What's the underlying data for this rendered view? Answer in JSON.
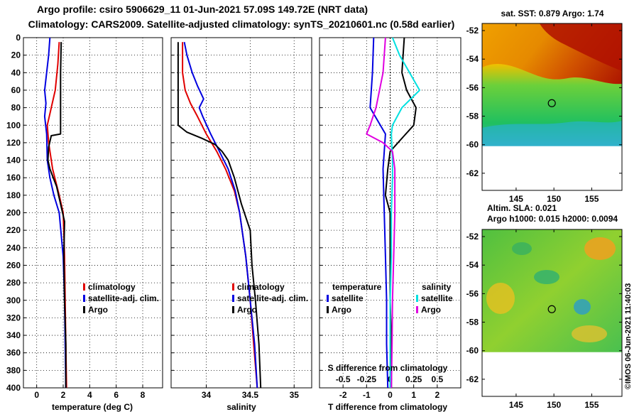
{
  "header": {
    "line1": "Argo profile: csiro 5906629_11 01-Jun-2021 57.09S 149.72E (NRT data)",
    "line2": "Climatology: CARS2009. Satellite-adjusted climatology: synTS_20210601.nc (0.58d earlier)"
  },
  "colors": {
    "climatology": "#e00000",
    "satellite": "#0000e0",
    "argo": "#000000",
    "sal_satellite": "#00e0e0",
    "sal_argo": "#e000e0"
  },
  "chart_data": [
    {
      "type": "line",
      "name": "temperature-profile",
      "xlabel": "temperature (deg C)",
      "ylabel": "",
      "xlim": [
        -1,
        9.5
      ],
      "ylim": [
        400,
        0
      ],
      "xticks": [
        0,
        2,
        4,
        6,
        8
      ],
      "xtick_labels": [
        "0",
        "2",
        "4",
        "6",
        "8"
      ],
      "yticks": [
        0,
        20,
        40,
        60,
        80,
        100,
        120,
        140,
        160,
        180,
        200,
        220,
        240,
        260,
        280,
        300,
        320,
        340,
        360,
        380,
        400
      ],
      "legend": [
        "climatology",
        "satellite-adj. clim.",
        "Argo"
      ],
      "series": [
        {
          "name": "climatology",
          "color": "climatology",
          "depth": [
            5,
            30,
            60,
            80,
            100,
            120,
            150,
            180,
            200,
            250,
            300,
            350,
            400
          ],
          "values": [
            1.7,
            1.6,
            1.4,
            1.1,
            0.8,
            0.9,
            1.2,
            1.7,
            2.0,
            2.1,
            2.15,
            2.2,
            2.25
          ]
        },
        {
          "name": "satellite-adj. clim.",
          "color": "satellite",
          "depth": [
            0,
            20,
            40,
            60,
            75,
            90,
            110,
            140,
            160,
            180,
            200,
            250,
            300,
            350,
            400
          ],
          "values": [
            1.0,
            0.9,
            0.75,
            0.6,
            0.7,
            0.6,
            0.75,
            0.8,
            1.0,
            1.3,
            1.7,
            2.0,
            2.1,
            2.15,
            2.2
          ]
        },
        {
          "name": "Argo",
          "color": "argo",
          "depth": [
            5,
            40,
            80,
            110,
            112,
            125,
            140,
            150,
            170,
            190,
            210,
            250,
            300,
            350,
            400
          ],
          "values": [
            1.85,
            1.8,
            1.8,
            1.8,
            1.1,
            0.9,
            0.85,
            1.0,
            1.5,
            1.8,
            2.1,
            2.05,
            2.1,
            2.2,
            2.2
          ]
        }
      ]
    },
    {
      "type": "line",
      "name": "salinity-profile",
      "xlabel": "salinity",
      "ylabel": "",
      "xlim": [
        33.6,
        35.2
      ],
      "ylim": [
        400,
        0
      ],
      "xticks": [
        34,
        34.5,
        35
      ],
      "xtick_labels": [
        "34",
        "34.5",
        "35"
      ],
      "yticks": [
        0,
        20,
        40,
        60,
        80,
        100,
        120,
        140,
        160,
        180,
        200,
        220,
        240,
        260,
        280,
        300,
        320,
        340,
        360,
        380,
        400
      ],
      "legend": [
        "climatology",
        "satellite-adj. clim.",
        "Argo"
      ],
      "series": [
        {
          "name": "climatology",
          "color": "climatology",
          "depth": [
            5,
            40,
            60,
            75,
            90,
            110,
            130,
            150,
            175,
            200,
            250,
            300,
            350,
            400
          ],
          "values": [
            33.73,
            33.73,
            33.76,
            33.82,
            33.9,
            34.0,
            34.12,
            34.22,
            34.32,
            34.38,
            34.45,
            34.5,
            34.54,
            34.58
          ]
        },
        {
          "name": "satellite-adj. clim.",
          "color": "satellite",
          "depth": [
            5,
            20,
            40,
            55,
            70,
            80,
            90,
            110,
            130,
            150,
            175,
            200,
            250,
            300,
            350,
            400
          ],
          "values": [
            33.75,
            33.78,
            33.84,
            33.9,
            33.97,
            33.92,
            33.96,
            34.05,
            34.15,
            34.25,
            34.33,
            34.38,
            34.45,
            34.5,
            34.55,
            34.58
          ]
        },
        {
          "name": "Argo",
          "color": "argo",
          "depth": [
            5,
            80,
            100,
            108,
            115,
            122,
            130,
            140,
            160,
            190,
            220,
            260,
            300,
            350,
            400
          ],
          "values": [
            33.68,
            33.68,
            33.68,
            33.78,
            33.95,
            34.1,
            34.18,
            34.25,
            34.32,
            34.4,
            34.5,
            34.52,
            34.56,
            34.6,
            34.62
          ]
        }
      ]
    },
    {
      "type": "line",
      "name": "difference-profile",
      "xlabel": "T difference from climatology",
      "xlim": [
        -3,
        3
      ],
      "ylim": [
        400,
        0
      ],
      "xticks": [
        -2,
        -1,
        0,
        1,
        2
      ],
      "xtick_labels": [
        "-2",
        "-1",
        "0",
        "1",
        "2"
      ],
      "top_axis_label": "S difference from climatology",
      "top_ticks": [
        -2,
        -1,
        0,
        1,
        2
      ],
      "top_tick_labels": [
        "-0.5",
        "-0.25",
        "0",
        "0.25",
        "0.5"
      ],
      "yticks": [
        0,
        20,
        40,
        60,
        80,
        100,
        120,
        140,
        160,
        180,
        200,
        220,
        240,
        260,
        280,
        300,
        320,
        340,
        360,
        380,
        400
      ],
      "legend_temperature": "temperature",
      "legend_salinity": "salinity",
      "legend_items": [
        "satellite",
        "Argo",
        "satellite",
        "Argo"
      ],
      "series": [
        {
          "name": "T satellite",
          "color": "satellite",
          "depth": [
            0,
            40,
            80,
            110,
            150,
            200,
            250,
            300,
            350,
            400
          ],
          "values": [
            -0.7,
            -0.75,
            -0.85,
            -0.2,
            -0.3,
            -0.25,
            -0.2,
            -0.15,
            -0.15,
            -0.1
          ]
        },
        {
          "name": "T Argo",
          "color": "argo",
          "depth": [
            0,
            40,
            60,
            80,
            100,
            112,
            130,
            150,
            180,
            200,
            250,
            300,
            350,
            400
          ],
          "values": [
            0.6,
            0.5,
            0.7,
            1.1,
            1.0,
            0.6,
            0.0,
            -0.1,
            -0.2,
            0.0,
            0.0,
            0.0,
            0.05,
            0.05
          ]
        },
        {
          "name": "S satellite",
          "color": "sal_satellite",
          "depth": [
            0,
            20,
            60,
            80,
            100,
            110,
            140,
            160,
            200,
            250,
            300,
            350,
            400
          ],
          "values": [
            0.1,
            0.4,
            1.25,
            0.5,
            0.1,
            0.05,
            0.1,
            0.1,
            0.05,
            0.05,
            0.0,
            0.0,
            0.0
          ]
        },
        {
          "name": "S Argo",
          "color": "sal_argo",
          "depth": [
            0,
            40,
            80,
            100,
            110,
            120,
            130,
            150,
            200,
            250,
            300,
            350,
            400
          ],
          "values": [
            -0.2,
            -0.3,
            -0.6,
            -0.85,
            -1.0,
            -0.3,
            0.1,
            0.2,
            0.2,
            0.15,
            0.1,
            0.08,
            0.05
          ]
        }
      ]
    },
    {
      "type": "heatmap",
      "name": "sst-map",
      "title": "sat. SST: 0.879 Argo: 1.74",
      "xticks": [
        145,
        150,
        155
      ],
      "xtick_labels": [
        "145",
        "150",
        "155"
      ],
      "yticks": [
        -52,
        -54,
        -56,
        -58,
        -60,
        -62
      ],
      "ytick_labels": [
        "-52",
        "-54",
        "-56",
        "-58",
        "-60",
        "-62"
      ],
      "xlim": [
        140.5,
        159
      ],
      "ylim": [
        -63.2,
        -51.5
      ],
      "data_extent_lat": [
        -60.1,
        -51.5
      ],
      "marker": {
        "lon": 149.72,
        "lat": -57.09
      }
    },
    {
      "type": "heatmap",
      "name": "sla-map",
      "title": "Altim. SLA: 0.021",
      "subtitle": "Argo h1000: 0.015 h2000: 0.0094",
      "xticks": [
        145,
        150,
        155
      ],
      "xtick_labels": [
        "145",
        "150",
        "155"
      ],
      "yticks": [
        -52,
        -54,
        -56,
        -58,
        -60,
        -62
      ],
      "ytick_labels": [
        "-52",
        "-54",
        "-56",
        "-58",
        "-60",
        "-62"
      ],
      "xlim": [
        140.5,
        159
      ],
      "ylim": [
        -63.2,
        -51.5
      ],
      "data_extent_lat": [
        -60.1,
        -51.5
      ],
      "marker": {
        "lon": 149.72,
        "lat": -57.09
      }
    }
  ],
  "footer": {
    "credit": "©IMOS 06-Jun-2021 11:40:03"
  }
}
